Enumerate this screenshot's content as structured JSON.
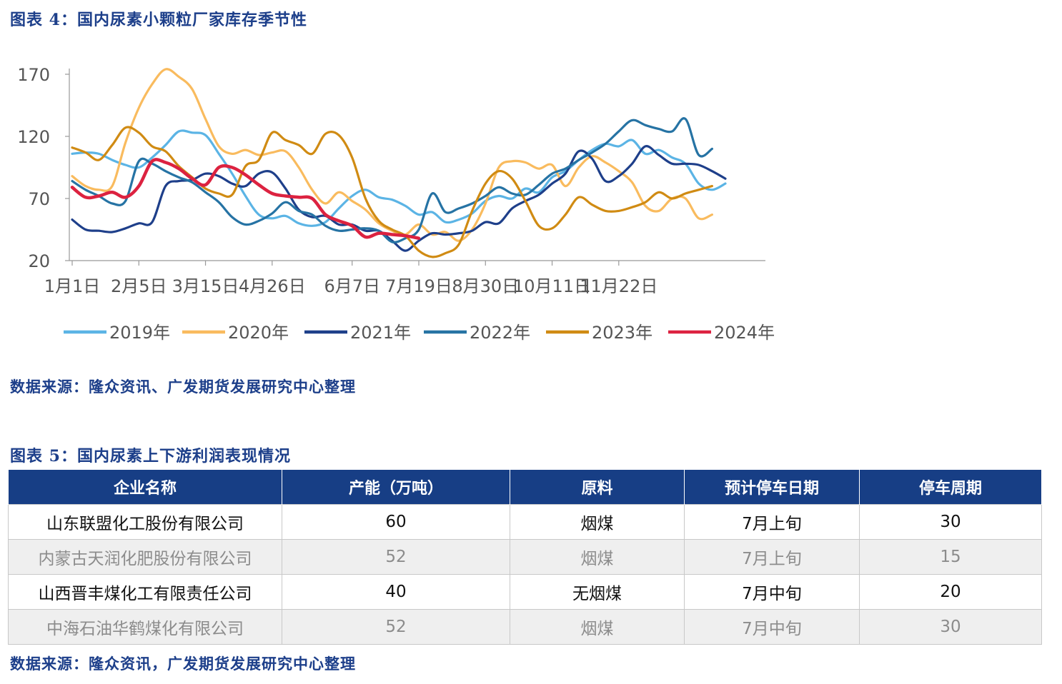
{
  "figure4": {
    "title": "图表 4：国内尿素小颗粒厂家库存季节性",
    "source": "数据来源：隆众资讯、广发期货发展研究中心整理"
  },
  "chart_data": {
    "type": "line",
    "title": "",
    "xlabel": "",
    "ylabel": "",
    "x_range": [
      0,
      52
    ],
    "ylim": [
      20,
      170
    ],
    "yticks": [
      20,
      70,
      120,
      170
    ],
    "xticks": [
      {
        "w": 0,
        "label": "1月1日"
      },
      {
        "w": 5,
        "label": "2月5日"
      },
      {
        "w": 10,
        "label": "3月15日"
      },
      {
        "w": 15,
        "label": "4月26日"
      },
      {
        "w": 21,
        "label": "6月7日"
      },
      {
        "w": 26,
        "label": "7月19日"
      },
      {
        "w": 31,
        "label": "8月30日"
      },
      {
        "w": 36,
        "label": "10月11日"
      },
      {
        "w": 41,
        "label": "11月22日"
      }
    ],
    "legend_position": "bottom",
    "series": [
      {
        "name": "2019年",
        "color": "#5bb4e5",
        "values": [
          106,
          107,
          106,
          101,
          97,
          95,
          103,
          113,
          124,
          123,
          121,
          106,
          90,
          72,
          57,
          54,
          56,
          50,
          48,
          51,
          62,
          72,
          77,
          71,
          69,
          64,
          57,
          59,
          51,
          53,
          58,
          68,
          72,
          70,
          78,
          75,
          87,
          92,
          101,
          109,
          114,
          112,
          117,
          106,
          109,
          103,
          98,
          82,
          77,
          82
        ]
      },
      {
        "name": "2020年",
        "color": "#f9bb5e",
        "values": [
          88,
          80,
          77,
          80,
          115,
          143,
          162,
          174,
          168,
          158,
          134,
          112,
          106,
          109,
          105,
          107,
          108,
          95,
          77,
          66,
          75,
          68,
          61,
          50,
          44,
          41,
          49,
          41,
          43,
          36,
          45,
          66,
          95,
          100,
          99,
          94,
          97,
          80,
          95,
          104,
          99,
          92,
          83,
          64,
          60,
          70,
          70,
          54,
          57
        ]
      },
      {
        "name": "2021年",
        "color": "#1e3f8a",
        "values": [
          53,
          45,
          44,
          43,
          46,
          50,
          51,
          80,
          84,
          85,
          90,
          88,
          82,
          80,
          90,
          91,
          78,
          61,
          55,
          56,
          49,
          49,
          44,
          44,
          36,
          28,
          36,
          42,
          41,
          42,
          44,
          51,
          50,
          62,
          68,
          73,
          82,
          90,
          108,
          102,
          84,
          88,
          98,
          112,
          105,
          98,
          98,
          97,
          92,
          86
        ]
      },
      {
        "name": "2022年",
        "color": "#2673a4",
        "values": [
          84,
          77,
          72,
          66,
          68,
          100,
          98,
          92,
          87,
          83,
          75,
          67,
          55,
          49,
          52,
          58,
          67,
          60,
          57,
          48,
          44,
          45,
          46,
          44,
          35,
          38,
          45,
          74,
          59,
          62,
          66,
          72,
          79,
          74,
          73,
          81,
          90,
          94,
          101,
          107,
          114,
          124,
          133,
          129,
          126,
          124,
          134,
          105,
          110
        ]
      },
      {
        "name": "2023年",
        "color": "#d08b13",
        "values": [
          111,
          107,
          101,
          113,
          127,
          123,
          112,
          108,
          96,
          87,
          78,
          74,
          73,
          96,
          101,
          123,
          117,
          113,
          106,
          122,
          121,
          103,
          70,
          52,
          45,
          40,
          28,
          23,
          26,
          33,
          60,
          82,
          92,
          86,
          68,
          48,
          46,
          57,
          71,
          65,
          60,
          60,
          63,
          67,
          75,
          70,
          74,
          77,
          80
        ]
      },
      {
        "name": "2024年",
        "color": "#dc2240",
        "values": [
          79,
          71,
          72,
          75,
          71,
          80,
          100,
          99,
          94,
          86,
          81,
          95,
          95,
          89,
          81,
          74,
          72,
          71,
          70,
          57,
          52,
          48,
          39,
          42,
          41,
          40,
          38
        ]
      }
    ]
  },
  "figure5": {
    "title": "图表 5：国内尿素上下游利润表现情况",
    "source": "数据来源：隆众资讯，广发期货发展研究中心整理",
    "headers": [
      "企业名称",
      "产能（万吨）",
      "原料",
      "预计停车日期",
      "停车周期"
    ],
    "rows": [
      [
        "山东联盟化工股份有限公司",
        "60",
        "烟煤",
        "7月上旬",
        "30"
      ],
      [
        "内蒙古天润化肥股份有限公司",
        "52",
        "烟煤",
        "7月上旬",
        "15"
      ],
      [
        "山西晋丰煤化工有限责任公司",
        "40",
        "无烟煤",
        "7月中旬",
        "20"
      ],
      [
        "中海石油华鹤煤化有限公司",
        "52",
        "烟煤",
        "7月中旬",
        "30"
      ]
    ]
  }
}
